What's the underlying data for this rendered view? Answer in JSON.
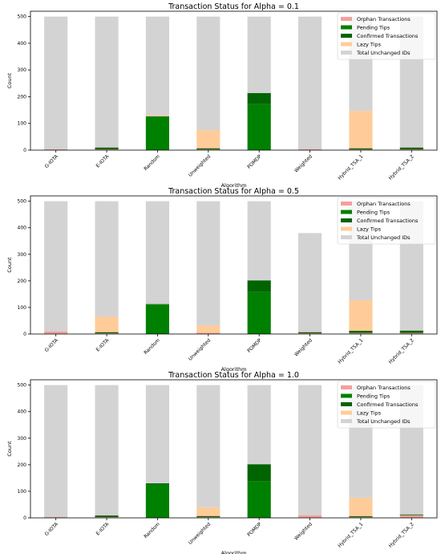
{
  "chart_data": [
    {
      "type": "bar",
      "stacked": true,
      "title": "Transaction Status for Alpha = 0.1",
      "xlabel": "Algorithm",
      "ylabel": "Count",
      "ylim": [
        0,
        520
      ],
      "yticks": [
        "0",
        "100",
        "200",
        "300",
        "400",
        "500"
      ],
      "categories": [
        "G-IOTA",
        "E-IOTA",
        "Random",
        "Unweighted",
        "POMDP",
        "Weighted",
        "Hybrid_TSA_1",
        "Hybrid_TSA_2"
      ],
      "legend_position": "top-right",
      "series": [
        {
          "name": "Orphan Transactions",
          "color": "#f4a09c",
          "values": [
            3,
            3,
            0,
            3,
            0,
            4,
            3,
            3
          ]
        },
        {
          "name": "Pending Tips",
          "color": "#008000",
          "values": [
            0,
            0,
            125,
            0,
            172,
            0,
            0,
            0
          ]
        },
        {
          "name": "Confirmed Transactions",
          "color": "#006400",
          "values": [
            0,
            7,
            2,
            4,
            42,
            0,
            4,
            7
          ]
        },
        {
          "name": "Lazy Tips",
          "color": "#ffcc99",
          "values": [
            0,
            0,
            4,
            68,
            0,
            0,
            140,
            0
          ]
        },
        {
          "name": "Total Unchanged IDs",
          "color": "#d3d3d3",
          "values": [
            497,
            490,
            369,
            425,
            286,
            496,
            353,
            490
          ]
        }
      ]
    },
    {
      "type": "bar",
      "stacked": true,
      "title": "Transaction Status for Alpha = 0.5",
      "xlabel": "Algorithm",
      "ylabel": "Count",
      "ylim": [
        0,
        520
      ],
      "yticks": [
        "0",
        "100",
        "200",
        "300",
        "400",
        "500"
      ],
      "categories": [
        "G-IOTA",
        "E-IOTA",
        "Random",
        "Unweighted",
        "POMDP",
        "Weighted",
        "Hybrid_TSA_1",
        "Hybrid_TSA_2"
      ],
      "legend_position": "top-right",
      "series": [
        {
          "name": "Orphan Transactions",
          "color": "#f4a09c",
          "values": [
            10,
            3,
            0,
            5,
            0,
            3,
            4,
            4
          ]
        },
        {
          "name": "Pending Tips",
          "color": "#008000",
          "values": [
            0,
            0,
            111,
            0,
            158,
            0,
            0,
            0
          ]
        },
        {
          "name": "Confirmed Transactions",
          "color": "#006400",
          "values": [
            0,
            4,
            2,
            0,
            44,
            4,
            8,
            9
          ]
        },
        {
          "name": "Lazy Tips",
          "color": "#ffcc99",
          "values": [
            0,
            58,
            0,
            27,
            0,
            0,
            115,
            0
          ]
        },
        {
          "name": "Total Unchanged IDs",
          "color": "#d3d3d3",
          "values": [
            490,
            435,
            387,
            468,
            298,
            373,
            373,
            487
          ]
        }
      ]
    },
    {
      "type": "bar",
      "stacked": true,
      "title": "Transaction Status for Alpha = 1.0",
      "xlabel": "Algorithm",
      "ylabel": "Count",
      "ylim": [
        0,
        520
      ],
      "yticks": [
        "0",
        "100",
        "200",
        "300",
        "400",
        "500"
      ],
      "categories": [
        "G-IOTA",
        "E-IOTA",
        "Random",
        "Unweighted",
        "POMDP",
        "Weighted",
        "Hybrid_TSA_1",
        "Hybrid_TSA_2"
      ],
      "legend_position": "top-right",
      "series": [
        {
          "name": "Orphan Transactions",
          "color": "#f4a09c",
          "values": [
            3,
            3,
            0,
            3,
            0,
            10,
            3,
            10
          ]
        },
        {
          "name": "Pending Tips",
          "color": "#008000",
          "values": [
            0,
            0,
            127,
            0,
            138,
            0,
            0,
            0
          ]
        },
        {
          "name": "Confirmed Transactions",
          "color": "#006400",
          "values": [
            0,
            6,
            3,
            4,
            64,
            0,
            3,
            3
          ]
        },
        {
          "name": "Lazy Tips",
          "color": "#ffcc99",
          "values": [
            0,
            0,
            0,
            33,
            0,
            0,
            70,
            0
          ]
        },
        {
          "name": "Total Unchanged IDs",
          "color": "#d3d3d3",
          "values": [
            497,
            491,
            370,
            460,
            298,
            490,
            424,
            487
          ]
        }
      ]
    }
  ]
}
